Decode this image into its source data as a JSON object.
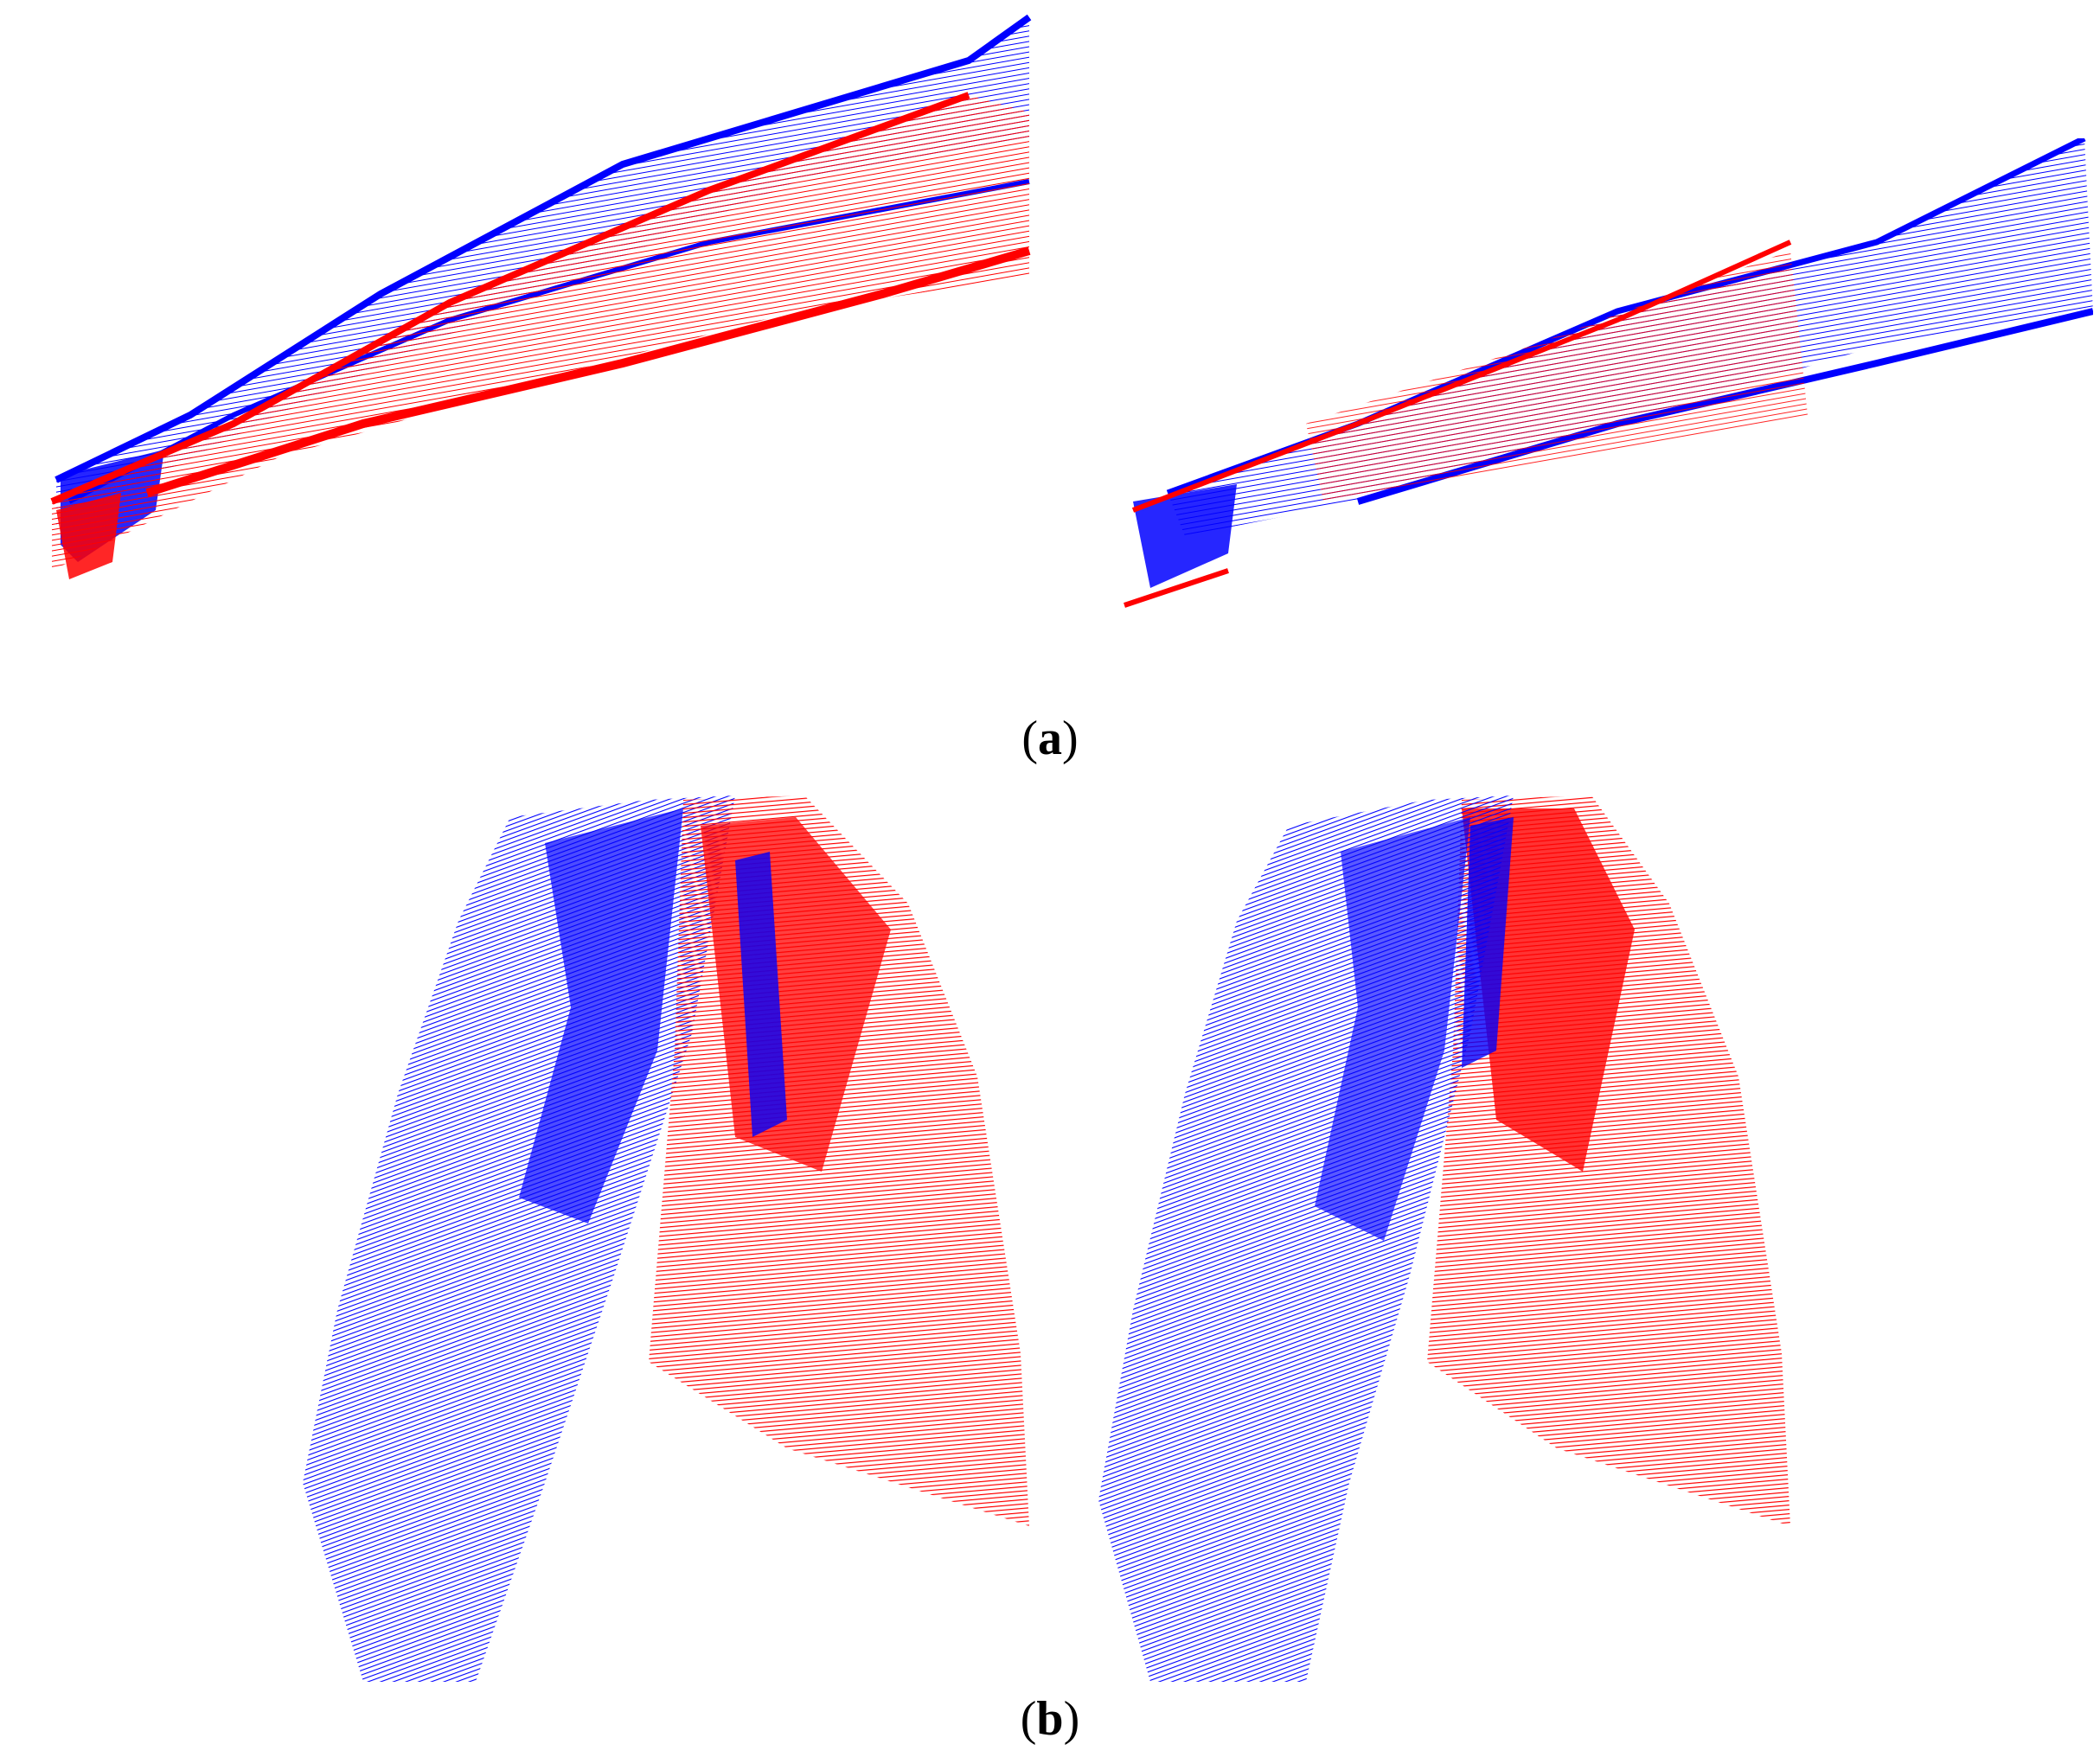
{
  "figure": {
    "colors": {
      "source": "#0000ff",
      "target": "#ff0000"
    },
    "subfigures": [
      {
        "id": "a",
        "label": "a",
        "open": "(",
        "close": ")"
      },
      {
        "id": "b",
        "label": "b",
        "open": "(",
        "close": ")"
      }
    ]
  }
}
